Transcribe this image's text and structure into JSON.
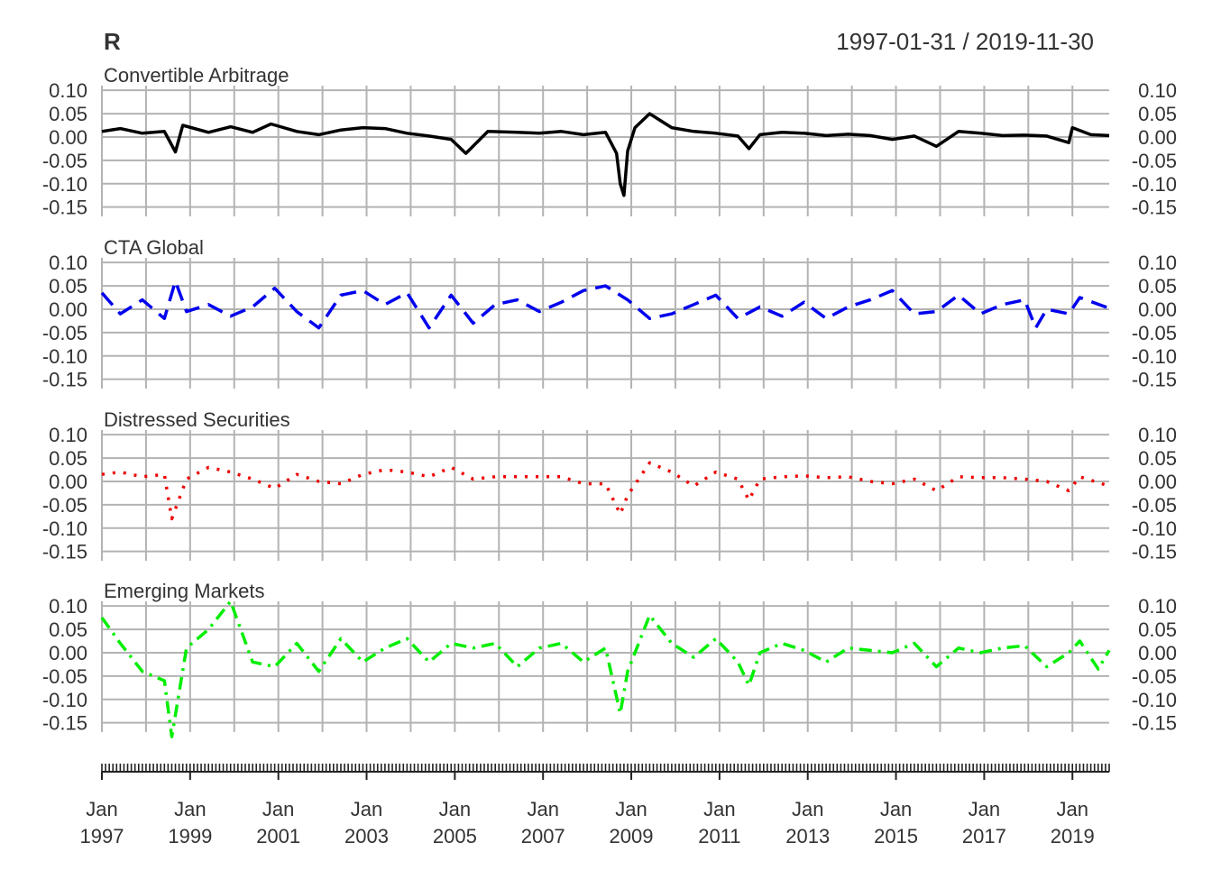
{
  "chart_data": {
    "type": "line",
    "title": "R",
    "date_range": "1997-01-31 / 2019-11-30",
    "x_start": "1997-01",
    "x_end": "2019-11",
    "ylim": [
      -0.17,
      0.11
    ],
    "yticks": [
      "0.10",
      "0.05",
      "0.00",
      "-0.05",
      "-0.10",
      "-0.15"
    ],
    "ytick_values": [
      0.1,
      0.05,
      0.0,
      -0.05,
      -0.1,
      -0.15
    ],
    "xticks": [
      {
        "month": "Jan",
        "year": "1997"
      },
      {
        "month": "Jan",
        "year": "1999"
      },
      {
        "month": "Jan",
        "year": "2001"
      },
      {
        "month": "Jan",
        "year": "2003"
      },
      {
        "month": "Jan",
        "year": "2005"
      },
      {
        "month": "Jan",
        "year": "2007"
      },
      {
        "month": "Jan",
        "year": "2009"
      },
      {
        "month": "Jan",
        "year": "2011"
      },
      {
        "month": "Jan",
        "year": "2013"
      },
      {
        "month": "Jan",
        "year": "2015"
      },
      {
        "month": "Jan",
        "year": "2017"
      },
      {
        "month": "Jan",
        "year": "2019"
      }
    ],
    "grid": true,
    "series": [
      {
        "name": "Convertible Arbitrage",
        "color": "#000000",
        "line_style": "solid",
        "points": [
          [
            "1997-01",
            0.012
          ],
          [
            "1997-06",
            0.018
          ],
          [
            "1997-12",
            0.008
          ],
          [
            "1998-06",
            0.012
          ],
          [
            "1998-09",
            -0.032
          ],
          [
            "1998-11",
            0.025
          ],
          [
            "1999-06",
            0.01
          ],
          [
            "1999-12",
            0.022
          ],
          [
            "2000-06",
            0.01
          ],
          [
            "2000-11",
            0.028
          ],
          [
            "2001-06",
            0.012
          ],
          [
            "2001-12",
            0.005
          ],
          [
            "2002-06",
            0.015
          ],
          [
            "2002-12",
            0.02
          ],
          [
            "2003-06",
            0.018
          ],
          [
            "2003-12",
            0.008
          ],
          [
            "2004-06",
            0.002
          ],
          [
            "2004-12",
            -0.005
          ],
          [
            "2005-04",
            -0.035
          ],
          [
            "2005-10",
            0.012
          ],
          [
            "2006-06",
            0.01
          ],
          [
            "2006-12",
            0.008
          ],
          [
            "2007-06",
            0.012
          ],
          [
            "2007-12",
            0.005
          ],
          [
            "2008-06",
            0.01
          ],
          [
            "2008-09",
            -0.035
          ],
          [
            "2008-10",
            -0.1
          ],
          [
            "2008-11",
            -0.125
          ],
          [
            "2008-12",
            -0.03
          ],
          [
            "2009-02",
            0.02
          ],
          [
            "2009-06",
            0.05
          ],
          [
            "2009-12",
            0.02
          ],
          [
            "2010-06",
            0.012
          ],
          [
            "2010-12",
            0.008
          ],
          [
            "2011-06",
            0.002
          ],
          [
            "2011-09",
            -0.025
          ],
          [
            "2011-12",
            0.005
          ],
          [
            "2012-06",
            0.01
          ],
          [
            "2012-12",
            0.008
          ],
          [
            "2013-06",
            0.003
          ],
          [
            "2013-12",
            0.006
          ],
          [
            "2014-06",
            0.003
          ],
          [
            "2014-12",
            -0.005
          ],
          [
            "2015-06",
            0.002
          ],
          [
            "2015-12",
            -0.02
          ],
          [
            "2016-06",
            0.012
          ],
          [
            "2016-12",
            0.008
          ],
          [
            "2017-06",
            0.003
          ],
          [
            "2017-12",
            0.004
          ],
          [
            "2018-06",
            0.002
          ],
          [
            "2018-12",
            -0.012
          ],
          [
            "2019-01",
            0.02
          ],
          [
            "2019-06",
            0.005
          ],
          [
            "2019-11",
            0.003
          ]
        ]
      },
      {
        "name": "CTA Global",
        "color": "#0000ee",
        "line_style": "dashed",
        "points": [
          [
            "1997-01",
            0.035
          ],
          [
            "1997-06",
            -0.01
          ],
          [
            "1997-12",
            0.02
          ],
          [
            "1998-06",
            -0.02
          ],
          [
            "1998-09",
            0.06
          ],
          [
            "1998-12",
            -0.005
          ],
          [
            "1999-06",
            0.01
          ],
          [
            "1999-12",
            -0.015
          ],
          [
            "2000-06",
            0.005
          ],
          [
            "2000-12",
            0.045
          ],
          [
            "2001-06",
            -0.005
          ],
          [
            "2001-12",
            -0.04
          ],
          [
            "2002-06",
            0.03
          ],
          [
            "2002-12",
            0.04
          ],
          [
            "2003-06",
            0.01
          ],
          [
            "2003-12",
            0.035
          ],
          [
            "2004-06",
            -0.04
          ],
          [
            "2004-12",
            0.03
          ],
          [
            "2005-06",
            -0.03
          ],
          [
            "2005-12",
            0.01
          ],
          [
            "2006-06",
            0.02
          ],
          [
            "2006-12",
            -0.005
          ],
          [
            "2007-06",
            0.015
          ],
          [
            "2007-12",
            0.04
          ],
          [
            "2008-06",
            0.05
          ],
          [
            "2008-12",
            0.02
          ],
          [
            "2009-06",
            -0.02
          ],
          [
            "2009-12",
            -0.01
          ],
          [
            "2010-06",
            0.01
          ],
          [
            "2010-12",
            0.03
          ],
          [
            "2011-06",
            -0.02
          ],
          [
            "2011-12",
            0.005
          ],
          [
            "2012-06",
            -0.015
          ],
          [
            "2012-12",
            0.015
          ],
          [
            "2013-06",
            -0.02
          ],
          [
            "2013-12",
            0.005
          ],
          [
            "2014-06",
            0.02
          ],
          [
            "2014-12",
            0.04
          ],
          [
            "2015-06",
            -0.01
          ],
          [
            "2015-12",
            -0.005
          ],
          [
            "2016-06",
            0.03
          ],
          [
            "2016-12",
            -0.01
          ],
          [
            "2017-06",
            0.01
          ],
          [
            "2017-12",
            0.02
          ],
          [
            "2018-03",
            -0.04
          ],
          [
            "2018-06",
            0.0
          ],
          [
            "2018-12",
            -0.01
          ],
          [
            "2019-03",
            0.025
          ],
          [
            "2019-11",
            0.002
          ]
        ]
      },
      {
        "name": "Distressed Securities",
        "color": "#ee0000",
        "line_style": "dotted",
        "points": [
          [
            "1997-01",
            0.015
          ],
          [
            "1997-06",
            0.02
          ],
          [
            "1997-12",
            0.01
          ],
          [
            "1998-06",
            0.015
          ],
          [
            "1998-08",
            -0.08
          ],
          [
            "1998-12",
            0.005
          ],
          [
            "1999-06",
            0.03
          ],
          [
            "1999-12",
            0.02
          ],
          [
            "2000-06",
            0.005
          ],
          [
            "2000-12",
            -0.015
          ],
          [
            "2001-06",
            0.015
          ],
          [
            "2001-12",
            0.0
          ],
          [
            "2002-06",
            -0.005
          ],
          [
            "2002-12",
            0.015
          ],
          [
            "2003-06",
            0.025
          ],
          [
            "2003-12",
            0.02
          ],
          [
            "2004-06",
            0.01
          ],
          [
            "2004-12",
            0.03
          ],
          [
            "2005-06",
            0.005
          ],
          [
            "2005-12",
            0.01
          ],
          [
            "2006-06",
            0.01
          ],
          [
            "2006-12",
            0.01
          ],
          [
            "2007-06",
            0.01
          ],
          [
            "2007-12",
            -0.005
          ],
          [
            "2008-06",
            -0.005
          ],
          [
            "2008-10",
            -0.07
          ],
          [
            "2008-12",
            -0.03
          ],
          [
            "2009-06",
            0.04
          ],
          [
            "2009-12",
            0.02
          ],
          [
            "2010-06",
            -0.01
          ],
          [
            "2010-12",
            0.02
          ],
          [
            "2011-06",
            0.005
          ],
          [
            "2011-09",
            -0.04
          ],
          [
            "2011-12",
            0.005
          ],
          [
            "2012-06",
            0.01
          ],
          [
            "2012-12",
            0.012
          ],
          [
            "2013-06",
            0.008
          ],
          [
            "2013-12",
            0.01
          ],
          [
            "2014-06",
            0.0
          ],
          [
            "2014-12",
            -0.005
          ],
          [
            "2015-06",
            0.005
          ],
          [
            "2015-12",
            -0.02
          ],
          [
            "2016-06",
            0.01
          ],
          [
            "2016-12",
            0.008
          ],
          [
            "2017-06",
            0.008
          ],
          [
            "2017-12",
            0.005
          ],
          [
            "2018-06",
            0.0
          ],
          [
            "2018-12",
            -0.02
          ],
          [
            "2019-03",
            0.01
          ],
          [
            "2019-11",
            -0.01
          ]
        ]
      },
      {
        "name": "Emerging Markets",
        "color": "#00ee00",
        "line_style": "dashdot",
        "points": [
          [
            "1997-01",
            0.075
          ],
          [
            "1997-06",
            0.02
          ],
          [
            "1997-12",
            -0.04
          ],
          [
            "1998-06",
            -0.06
          ],
          [
            "1998-08",
            -0.18
          ],
          [
            "1998-12",
            0.01
          ],
          [
            "1999-06",
            0.05
          ],
          [
            "1999-12",
            0.11
          ],
          [
            "2000-06",
            -0.02
          ],
          [
            "2000-12",
            -0.03
          ],
          [
            "2001-06",
            0.02
          ],
          [
            "2001-12",
            -0.04
          ],
          [
            "2002-06",
            0.03
          ],
          [
            "2002-12",
            -0.02
          ],
          [
            "2003-06",
            0.01
          ],
          [
            "2003-12",
            0.03
          ],
          [
            "2004-06",
            -0.02
          ],
          [
            "2004-12",
            0.02
          ],
          [
            "2005-06",
            0.01
          ],
          [
            "2005-12",
            0.02
          ],
          [
            "2006-06",
            -0.03
          ],
          [
            "2006-12",
            0.01
          ],
          [
            "2007-06",
            0.02
          ],
          [
            "2007-12",
            -0.02
          ],
          [
            "2008-06",
            0.01
          ],
          [
            "2008-10",
            -0.13
          ],
          [
            "2008-12",
            -0.04
          ],
          [
            "2009-06",
            0.08
          ],
          [
            "2009-12",
            0.02
          ],
          [
            "2010-06",
            -0.01
          ],
          [
            "2010-12",
            0.03
          ],
          [
            "2011-06",
            -0.02
          ],
          [
            "2011-09",
            -0.07
          ],
          [
            "2011-12",
            0.0
          ],
          [
            "2012-06",
            0.02
          ],
          [
            "2012-12",
            0.005
          ],
          [
            "2013-06",
            -0.02
          ],
          [
            "2013-12",
            0.01
          ],
          [
            "2014-06",
            0.005
          ],
          [
            "2014-12",
            0.0
          ],
          [
            "2015-06",
            0.02
          ],
          [
            "2015-12",
            -0.03
          ],
          [
            "2016-06",
            0.01
          ],
          [
            "2016-12",
            0.0
          ],
          [
            "2017-06",
            0.01
          ],
          [
            "2017-12",
            0.015
          ],
          [
            "2018-06",
            -0.03
          ],
          [
            "2018-12",
            0.0
          ],
          [
            "2019-03",
            0.025
          ],
          [
            "2019-08",
            -0.035
          ],
          [
            "2019-11",
            0.005
          ]
        ]
      }
    ]
  }
}
